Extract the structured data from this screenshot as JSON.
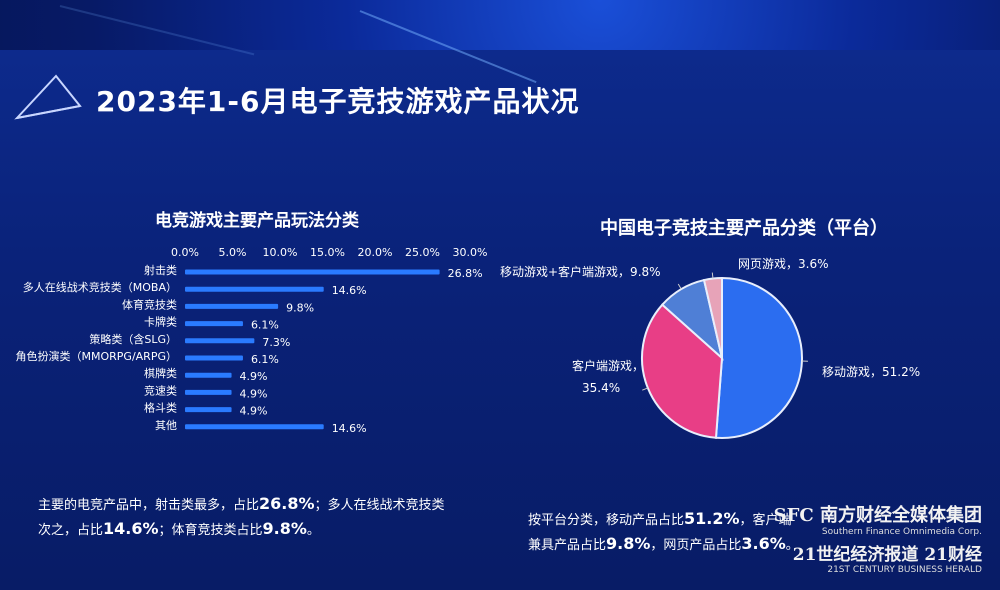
{
  "main_title": "2023年1-6月电子竞技游戏产品状况",
  "chart_data": [
    {
      "type": "bar",
      "orientation": "horizontal",
      "title": "电竞游戏主要产品玩法分类",
      "categories": [
        "射击类",
        "多人在线战术竞技类（MOBA）",
        "体育竞技类",
        "卡牌类",
        "策略类（含SLG）",
        "角色扮演类（MMORPG/ARPG）",
        "棋牌类",
        "竞速类",
        "格斗类",
        "其他"
      ],
      "values": [
        26.8,
        14.6,
        9.8,
        6.1,
        7.3,
        6.1,
        4.9,
        4.9,
        4.9,
        14.6
      ],
      "value_labels": [
        "26.8%",
        "14.6%",
        "9.8%",
        "6.1%",
        "7.3%",
        "6.1%",
        "4.9%",
        "4.9%",
        "4.9%",
        "14.6%"
      ],
      "ticks": [
        "0.0%",
        "5.0%",
        "10.0%",
        "15.0%",
        "20.0%",
        "25.0%",
        "30.0%"
      ],
      "xlim": [
        0,
        30
      ],
      "bar_color": "#2a7bff"
    },
    {
      "type": "pie",
      "title": "中国电子竞技主要产品分类（平台）",
      "slices": [
        {
          "label": "移动游戏，51.2%",
          "value": 51.2,
          "color": "#2b6df0"
        },
        {
          "label": "客户端游戏，35.4%",
          "value": 35.4,
          "color": "#e83e86"
        },
        {
          "label": "移动游戏+客户端游戏，9.8%",
          "value": 9.8,
          "color": "#4f7fd6"
        },
        {
          "label": "网页游戏，3.6%",
          "value": 3.6,
          "color": "#e7a3b8"
        }
      ]
    }
  ],
  "summary_left": {
    "l1a": "主要的电竞产品中，射击类最多，占比",
    "l1b": "26.8%",
    "l1c": "；多人在线战术竞技类",
    "l2a": "次之，占比",
    "l2b": "14.6%",
    "l2c": "；体育竞技类占比",
    "l2d": "9.8%",
    "l2e": "。"
  },
  "summary_right": {
    "l1a": "按平台分类，移动产品占比",
    "l1b": "51.2%",
    "l1c": "，客户端",
    "l2a": "兼具产品占比",
    "l2b": "9.8%",
    "l2c": "，网页产品占比",
    "l2d": "3.6%",
    "l2e": "。"
  },
  "watermark": {
    "line1": "SFC 南方财经全媒体集团",
    "line1_en": "Southern Finance Omnimedia Corp.",
    "line2": "21世纪经济报道  21财经",
    "line2_en": "21ST CENTURY BUSINESS HERALD"
  }
}
